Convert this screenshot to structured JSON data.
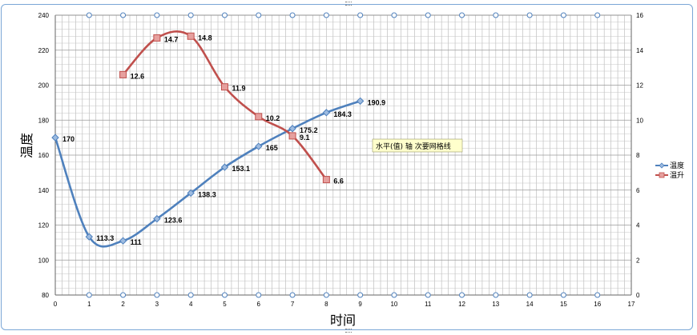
{
  "chart_data": {
    "type": "line",
    "xlabel": "时间",
    "ylabel": "温度",
    "xlim": [
      0,
      17
    ],
    "ylim": [
      80,
      240
    ],
    "y2lim": [
      0,
      16
    ],
    "x_ticks": [
      0,
      1,
      2,
      3,
      4,
      5,
      6,
      7,
      8,
      9,
      10,
      11,
      12,
      13,
      14,
      15,
      16,
      17
    ],
    "y_ticks": [
      80,
      100,
      120,
      140,
      160,
      180,
      200,
      220,
      240
    ],
    "y2_ticks": [
      0,
      2,
      4,
      6,
      8,
      10,
      12,
      14,
      16
    ],
    "grid": true,
    "legend_position": "right",
    "tooltip": "水平(值) 轴 次要网格线",
    "series": [
      {
        "name": "温度",
        "axis": "left",
        "color": "#4f81bd",
        "marker": "diamond",
        "x": [
          0,
          1,
          2,
          3,
          4,
          5,
          6,
          7,
          8,
          9
        ],
        "values": [
          170,
          113.3,
          111,
          123.6,
          138.3,
          153.1,
          165,
          175.2,
          184.3,
          190.9
        ],
        "labels": [
          "170",
          "113.3",
          "111",
          "123.6",
          "138.3",
          "153.1",
          "165",
          "175.2",
          "184.3",
          "190.9"
        ]
      },
      {
        "name": "温升",
        "axis": "right",
        "color": "#c0504d",
        "marker": "square",
        "x": [
          2,
          3,
          4,
          5,
          6,
          7,
          8
        ],
        "values": [
          12.6,
          14.7,
          14.8,
          11.9,
          10.2,
          9.1,
          6.6
        ],
        "labels": [
          "12.6",
          "14.7",
          "14.8",
          "11.9",
          "10.2",
          "9.1",
          "6.6"
        ]
      }
    ]
  }
}
